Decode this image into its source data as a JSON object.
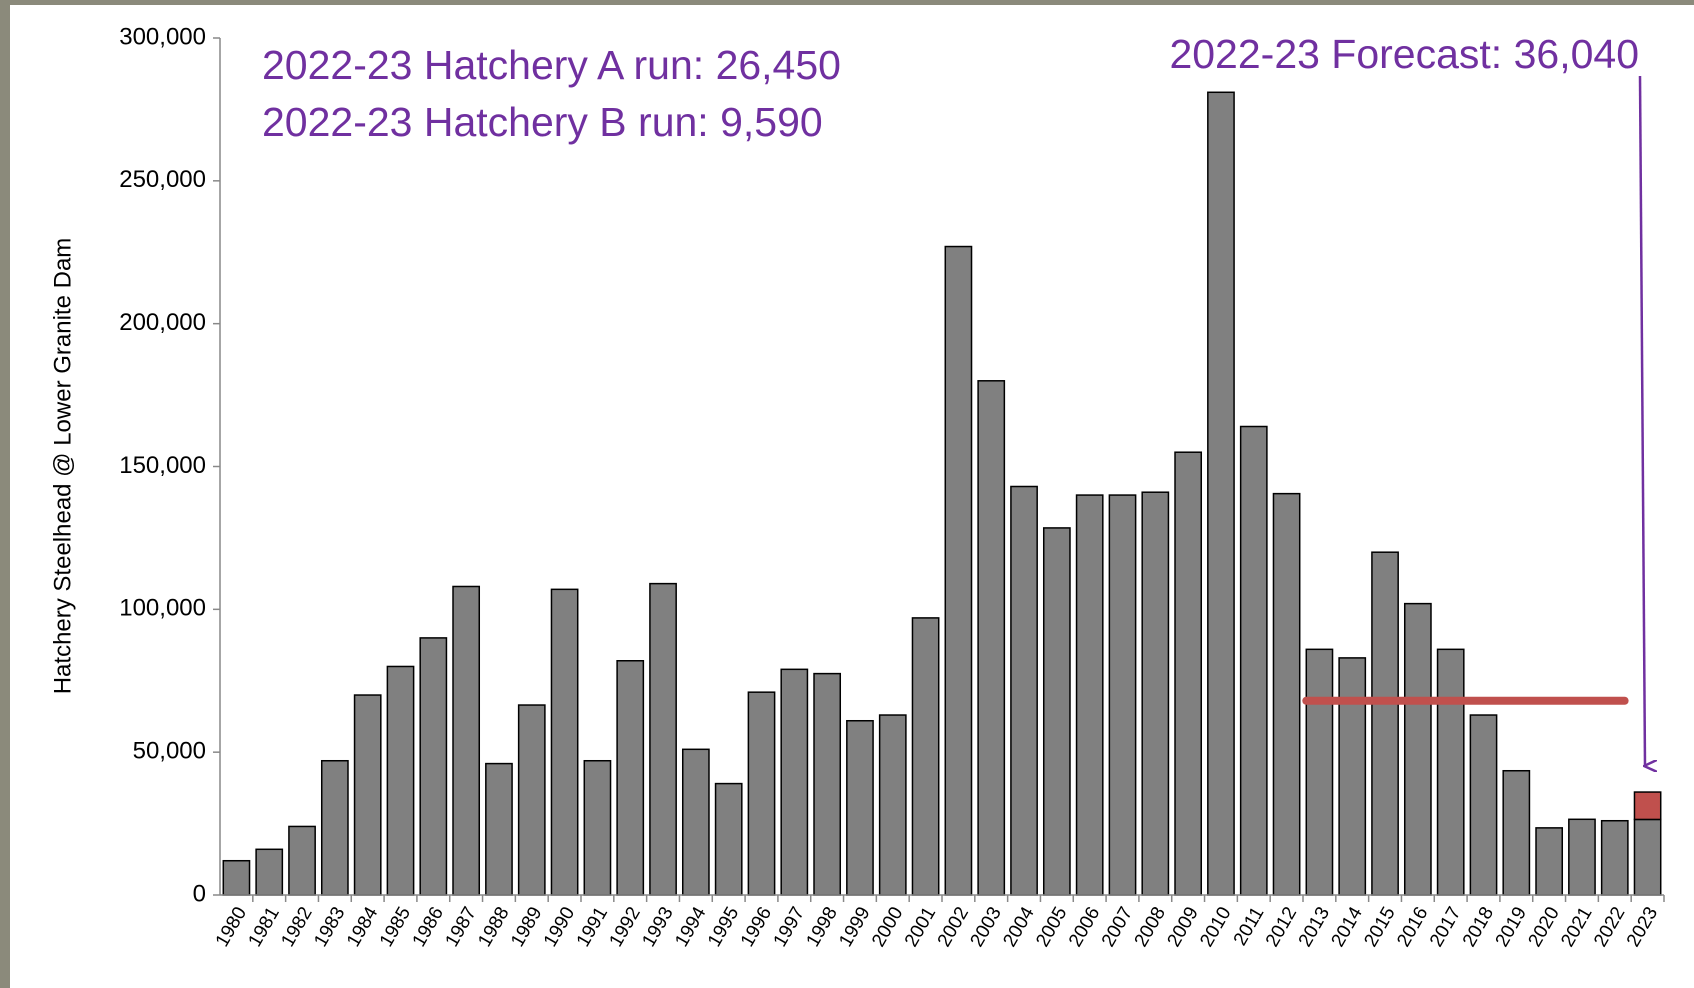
{
  "chart_data": {
    "type": "bar",
    "y_label": "Hatchery Steelhead @ Lower Granite Dam",
    "categories": [
      "1980",
      "1981",
      "1982",
      "1983",
      "1984",
      "1985",
      "1986",
      "1987",
      "1988",
      "1989",
      "1990",
      "1991",
      "1992",
      "1993",
      "1994",
      "1995",
      "1996",
      "1997",
      "1998",
      "1999",
      "2000",
      "2001",
      "2002",
      "2003",
      "2004",
      "2005",
      "2006",
      "2007",
      "2008",
      "2009",
      "2010",
      "2011",
      "2012",
      "2013",
      "2014",
      "2015",
      "2016",
      "2017",
      "2018",
      "2019",
      "2020",
      "2021",
      "2022",
      "2023"
    ],
    "series": [
      {
        "color": "#808080",
        "values": [
          12000,
          16000,
          24000,
          47000,
          70000,
          80000,
          90000,
          108000,
          46000,
          66500,
          107000,
          47000,
          82000,
          109000,
          51000,
          39000,
          71000,
          79000,
          77500,
          61000,
          63000,
          97000,
          227000,
          180000,
          143000,
          128500,
          140000,
          140000,
          141000,
          155000,
          281000,
          164000,
          140500,
          86000,
          83000,
          120000,
          102000,
          86000,
          63000,
          43500,
          23500,
          26500,
          26000,
          26450
        ]
      },
      {
        "color": "#c0504d",
        "values": [
          null,
          null,
          null,
          null,
          null,
          null,
          null,
          null,
          null,
          null,
          null,
          null,
          null,
          null,
          null,
          null,
          null,
          null,
          null,
          null,
          null,
          null,
          null,
          null,
          null,
          null,
          null,
          null,
          null,
          null,
          null,
          null,
          null,
          null,
          null,
          null,
          null,
          null,
          null,
          null,
          null,
          null,
          null,
          9590
        ]
      }
    ],
    "stacked": true,
    "reference_line": {
      "value": 68000,
      "from": "2013",
      "to": "2022",
      "color": "#c0504d"
    },
    "annotations": [
      "2022-23  Hatchery A run: 26,450",
      "2022-23  Hatchery B run: 9,590",
      "2022-23 Forecast: 36,040"
    ],
    "annotation_color": "#7030a0",
    "ylim": [
      0,
      300000
    ],
    "yticks": [
      0,
      {
        "value": 50000,
        "label": "50,000"
      },
      {
        "value": 100000,
        "label": "100,000"
      },
      {
        "value": 150000,
        "label": "150,000"
      },
      {
        "value": 200000,
        "label": "200,000"
      },
      {
        "value": 250000,
        "label": "250,000"
      },
      {
        "value": 300000,
        "label": "300,000"
      }
    ]
  }
}
